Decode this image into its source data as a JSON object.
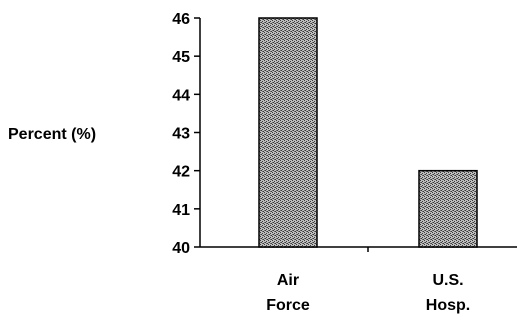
{
  "chart_data": {
    "type": "bar",
    "categories": [
      "Air Force",
      "U.S. Hosp."
    ],
    "category_lines": [
      [
        "Air",
        "Force"
      ],
      [
        "U.S.",
        "Hosp."
      ]
    ],
    "values": [
      46,
      42
    ],
    "ylabel": "Percent (%)",
    "xlabel": "",
    "title": "",
    "ylim": [
      40,
      46
    ],
    "yticks": [
      40,
      41,
      42,
      43,
      44,
      45,
      46
    ],
    "grid": false,
    "legend": "none",
    "bar_fill": "#8c8c8c",
    "bar_stroke": "#000000",
    "axis_color": "#000000"
  }
}
